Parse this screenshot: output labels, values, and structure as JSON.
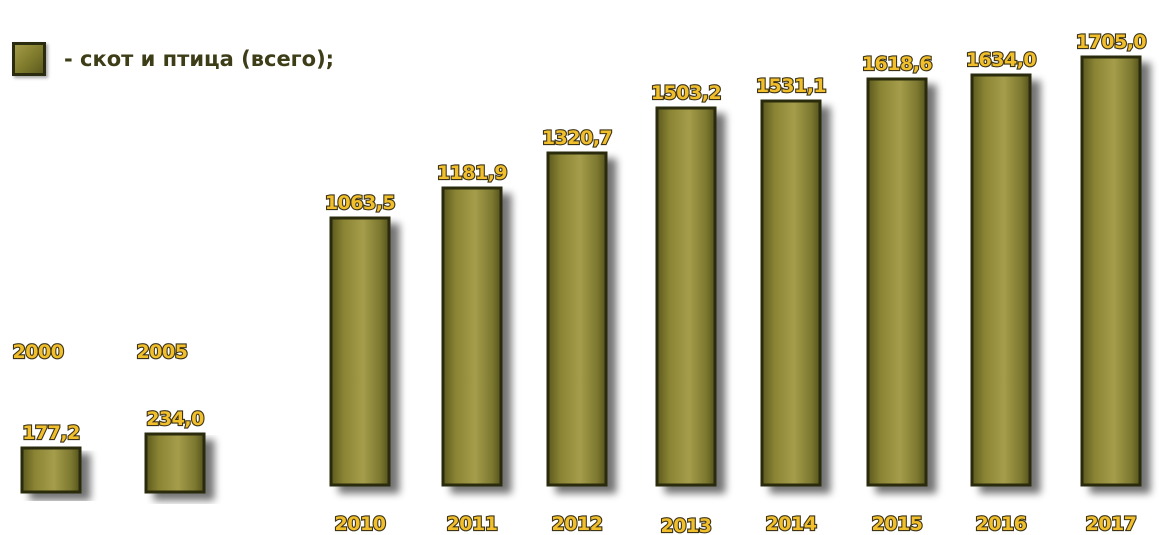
{
  "chart_data": {
    "type": "bar",
    "categories": [
      "2000",
      "2005",
      "2010",
      "2011",
      "2012",
      "2013",
      "2014",
      "2015",
      "2016",
      "2017"
    ],
    "values": [
      177.2,
      234.0,
      1063.5,
      1181.9,
      1320.7,
      1503.2,
      1531.1,
      1618.6,
      1634.0,
      1705.0
    ],
    "value_labels": [
      "177,2",
      "234,0",
      "1063,5",
      "1181,9",
      "1320,7",
      "1503,2",
      "1531,1",
      "1618,6",
      "1634,0",
      "1705,0"
    ],
    "series": [
      {
        "name": "- скот и птица (всего);",
        "values": [
          177.2,
          234.0,
          1063.5,
          1181.9,
          1320.7,
          1503.2,
          1531.1,
          1618.6,
          1634.0,
          1705.0
        ]
      }
    ],
    "legend": "top-left",
    "grid": false,
    "ylim": [
      0,
      1800
    ],
    "bar_color": "#7e7a2c"
  }
}
